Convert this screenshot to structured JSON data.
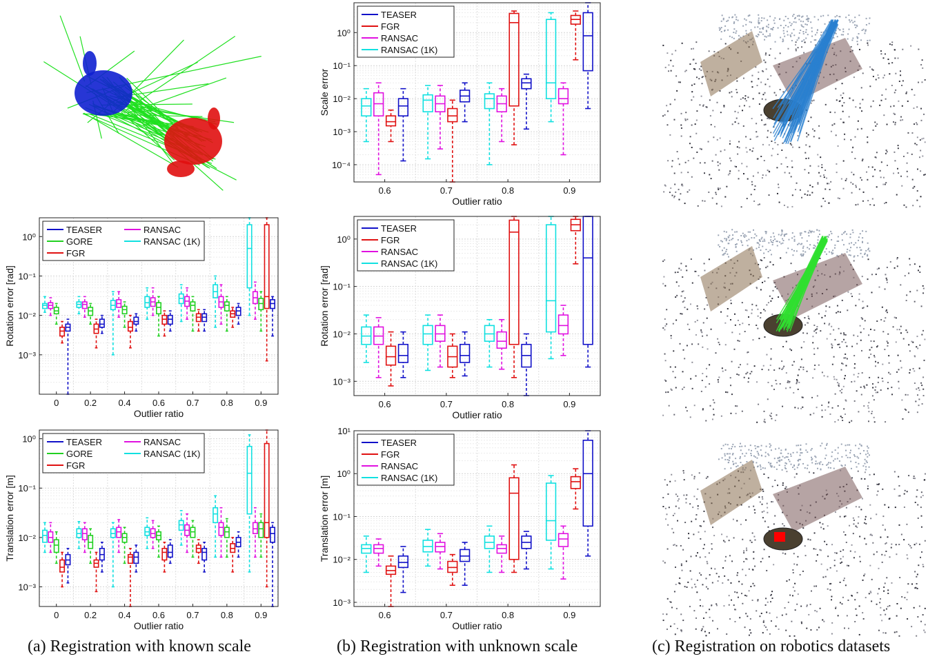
{
  "captions": {
    "a": "(a) Registration with known scale",
    "b": "(b) Registration with unknown scale",
    "c": "(c) Registration on robotics datasets"
  },
  "colors": {
    "TEASER": "#1010c8",
    "FGR": "#e01010",
    "RANSAC": "#e010e0",
    "RANSAC (1K)": "#10e0e0",
    "GORE": "#20d020",
    "bunny_source": "#1020d0",
    "bunny_target": "#e01010",
    "correspondence_a": "#20e020",
    "correspondence_c1": "#2a80d0",
    "correspondence_c2": "#30e030",
    "object_c3": "#ff0000"
  },
  "chart_data": [
    {
      "id": "rot_known",
      "type": "box",
      "ylabel": "Rotation error [rad]",
      "xlabel": "Outlier ratio",
      "categories": [
        "0",
        "0.2",
        "0.4",
        "0.6",
        "0.7",
        "0.8",
        "0.9"
      ],
      "yscale": "log",
      "ylim": [
        0.0001,
        3
      ],
      "yticks": [
        0.001,
        0.01,
        0.1,
        1
      ],
      "ytick_labels": [
        "10⁻³",
        "10⁻²",
        "10⁻¹",
        "10⁰"
      ],
      "legend": {
        "position": "top-left",
        "columns": 2,
        "entries": [
          "TEASER",
          "GORE",
          "FGR",
          "RANSAC",
          "RANSAC (1K)"
        ]
      },
      "series_order": [
        "RANSAC (1K)",
        "RANSAC",
        "GORE",
        "FGR",
        "TEASER"
      ],
      "boxes": {
        "RANSAC (1K)": [
          [
            0.012,
            0.015,
            0.018,
            0.02,
            0.03
          ],
          [
            0.011,
            0.016,
            0.019,
            0.022,
            0.03
          ],
          [
            0.001,
            0.014,
            0.018,
            0.024,
            0.04
          ],
          [
            0.008,
            0.016,
            0.021,
            0.03,
            0.05
          ],
          [
            0.007,
            0.02,
            0.027,
            0.035,
            0.06
          ],
          [
            0.005,
            0.028,
            0.04,
            0.06,
            0.1
          ],
          [
            0.01,
            0.05,
            0.5,
            2,
            3
          ]
        ],
        "RANSAC": [
          [
            0.01,
            0.015,
            0.018,
            0.021,
            0.028
          ],
          [
            0.009,
            0.015,
            0.019,
            0.022,
            0.03
          ],
          [
            0.009,
            0.016,
            0.02,
            0.025,
            0.04
          ],
          [
            0.01,
            0.017,
            0.022,
            0.028,
            0.05
          ],
          [
            0.008,
            0.017,
            0.023,
            0.03,
            0.05
          ],
          [
            0.006,
            0.016,
            0.022,
            0.03,
            0.06
          ],
          [
            0.008,
            0.02,
            0.028,
            0.04,
            0.07
          ]
        ],
        "GORE": [
          [
            0.006,
            0.011,
            0.013,
            0.016,
            0.02
          ],
          [
            0.006,
            0.01,
            0.013,
            0.016,
            0.02
          ],
          [
            0.005,
            0.011,
            0.014,
            0.017,
            0.022
          ],
          [
            0.003,
            0.011,
            0.016,
            0.021,
            0.03
          ],
          [
            0.004,
            0.013,
            0.018,
            0.022,
            0.03
          ],
          [
            0.004,
            0.013,
            0.018,
            0.022,
            0.03
          ],
          [
            0.004,
            0.014,
            0.02,
            0.027,
            0.04
          ]
        ],
        "FGR": [
          [
            0.002,
            0.003,
            0.004,
            0.005,
            0.007
          ],
          [
            0.0015,
            0.0035,
            0.0045,
            0.006,
            0.008
          ],
          [
            0.0015,
            0.004,
            0.005,
            0.007,
            0.01
          ],
          [
            0.003,
            0.006,
            0.008,
            0.01,
            0.013
          ],
          [
            0.004,
            0.007,
            0.009,
            0.011,
            0.014
          ],
          [
            0.005,
            0.009,
            0.011,
            0.013,
            0.016
          ],
          [
            0.0007,
            0.015,
            0.03,
            2,
            3
          ]
        ],
        "TEASER": [
          [
            0.0001,
            0.004,
            0.005,
            0.006,
            0.008
          ],
          [
            0.0035,
            0.005,
            0.006,
            0.008,
            0.01
          ],
          [
            0.004,
            0.006,
            0.007,
            0.009,
            0.011
          ],
          [
            0.004,
            0.006,
            0.008,
            0.01,
            0.013
          ],
          [
            0.004,
            0.007,
            0.009,
            0.011,
            0.014
          ],
          [
            0.006,
            0.01,
            0.013,
            0.016,
            0.02
          ],
          [
            0.003,
            0.015,
            0.02,
            0.025,
            0.03
          ]
        ]
      }
    },
    {
      "id": "trans_known",
      "type": "box",
      "ylabel": "Translation error [m]",
      "xlabel": "Outlier ratio",
      "categories": [
        "0",
        "0.2",
        "0.4",
        "0.6",
        "0.7",
        "0.8",
        "0.9"
      ],
      "yscale": "log",
      "ylim": [
        0.0004,
        1.5
      ],
      "yticks": [
        0.001,
        0.01,
        0.1,
        1
      ],
      "ytick_labels": [
        "10⁻³",
        "10⁻²",
        "10⁻¹",
        "10⁰"
      ],
      "legend": {
        "position": "top-left",
        "columns": 2,
        "entries": [
          "TEASER",
          "GORE",
          "FGR",
          "RANSAC",
          "RANSAC (1K)"
        ]
      },
      "series_order": [
        "RANSAC (1K)",
        "RANSAC",
        "GORE",
        "FGR",
        "TEASER"
      ],
      "boxes": {
        "RANSAC (1K)": [
          [
            0.005,
            0.008,
            0.011,
            0.014,
            0.02
          ],
          [
            0.006,
            0.01,
            0.012,
            0.015,
            0.021
          ],
          [
            0.001,
            0.01,
            0.012,
            0.015,
            0.02
          ],
          [
            0.006,
            0.011,
            0.013,
            0.016,
            0.025
          ],
          [
            0.007,
            0.014,
            0.018,
            0.022,
            0.035
          ],
          [
            0.004,
            0.02,
            0.03,
            0.04,
            0.07
          ],
          [
            0.002,
            0.03,
            0.2,
            0.7,
            1.2
          ]
        ],
        "RANSAC": [
          [
            0.005,
            0.008,
            0.01,
            0.013,
            0.02
          ],
          [
            0.005,
            0.009,
            0.012,
            0.015,
            0.02
          ],
          [
            0.005,
            0.01,
            0.013,
            0.016,
            0.023
          ],
          [
            0.006,
            0.01,
            0.012,
            0.015,
            0.022
          ],
          [
            0.005,
            0.011,
            0.014,
            0.018,
            0.03
          ],
          [
            0.004,
            0.011,
            0.016,
            0.02,
            0.04
          ],
          [
            0.004,
            0.012,
            0.015,
            0.02,
            0.04
          ]
        ],
        "GORE": [
          [
            0.003,
            0.005,
            0.007,
            0.009,
            0.013
          ],
          [
            0.003,
            0.006,
            0.008,
            0.011,
            0.015
          ],
          [
            0.003,
            0.008,
            0.01,
            0.012,
            0.016
          ],
          [
            0.004,
            0.009,
            0.011,
            0.013,
            0.017
          ],
          [
            0.004,
            0.01,
            0.013,
            0.016,
            0.022
          ],
          [
            0.004,
            0.01,
            0.013,
            0.016,
            0.024
          ],
          [
            0.004,
            0.01,
            0.015,
            0.02,
            0.03
          ]
        ],
        "FGR": [
          [
            0.001,
            0.002,
            0.0025,
            0.0035,
            0.005
          ],
          [
            0.0008,
            0.0025,
            0.003,
            0.0035,
            0.005
          ],
          [
            0.0004,
            0.003,
            0.004,
            0.0045,
            0.006
          ],
          [
            0.002,
            0.0035,
            0.005,
            0.006,
            0.008
          ],
          [
            0.003,
            0.005,
            0.006,
            0.007,
            0.009
          ],
          [
            0.002,
            0.005,
            0.006,
            0.0075,
            0.01
          ],
          [
            0.001,
            0.01,
            0.02,
            0.8,
            1.5
          ]
        ],
        "TEASER": [
          [
            0.0012,
            0.0028,
            0.0035,
            0.0045,
            0.006
          ],
          [
            0.002,
            0.0035,
            0.0045,
            0.006,
            0.008
          ],
          [
            0.002,
            0.003,
            0.004,
            0.005,
            0.007
          ],
          [
            0.003,
            0.004,
            0.005,
            0.007,
            0.009
          ],
          [
            0.002,
            0.0035,
            0.005,
            0.006,
            0.008
          ],
          [
            0.004,
            0.0065,
            0.008,
            0.01,
            0.013
          ],
          [
            0.0004,
            0.008,
            0.012,
            0.016,
            0.02
          ]
        ]
      }
    },
    {
      "id": "scale_unknown",
      "type": "box",
      "ylabel": "Scale error",
      "xlabel": "Outlier ratio",
      "categories": [
        "0.6",
        "0.7",
        "0.8",
        "0.9"
      ],
      "yscale": "log",
      "ylim": [
        3e-05,
        8
      ],
      "yticks": [
        0.0001,
        0.001,
        0.01,
        0.1,
        1
      ],
      "ytick_labels": [
        "10⁻⁴",
        "10⁻³",
        "10⁻²",
        "10⁻¹",
        "10⁰"
      ],
      "legend": {
        "position": "top-left",
        "columns": 1,
        "entries": [
          "TEASER",
          "FGR",
          "RANSAC",
          "RANSAC (1K)"
        ]
      },
      "series_order": [
        "RANSAC (1K)",
        "RANSAC",
        "FGR",
        "TEASER"
      ],
      "boxes": {
        "RANSAC (1K)": [
          [
            0.0005,
            0.003,
            0.006,
            0.01,
            0.02
          ],
          [
            0.00015,
            0.004,
            0.009,
            0.013,
            0.025
          ],
          [
            0.0001,
            0.005,
            0.01,
            0.014,
            0.03
          ],
          [
            0.002,
            0.01,
            0.03,
            2.5,
            4
          ]
        ],
        "RANSAC": [
          [
            5e-05,
            0.003,
            0.007,
            0.015,
            0.03
          ],
          [
            0.0003,
            0.004,
            0.007,
            0.012,
            0.025
          ],
          [
            0.0005,
            0.004,
            0.007,
            0.012,
            0.02
          ],
          [
            0.0002,
            0.007,
            0.01,
            0.02,
            0.03
          ]
        ],
        "FGR": [
          [
            0.0005,
            0.0015,
            0.002,
            0.003,
            0.0045
          ],
          [
            3e-05,
            0.002,
            0.003,
            0.005,
            0.009
          ],
          [
            0.0004,
            0.006,
            2,
            3.8,
            4.5
          ],
          [
            0.15,
            1.8,
            2.5,
            3.3,
            4.5
          ]
        ],
        "TEASER": [
          [
            0.00013,
            0.003,
            0.006,
            0.01,
            0.02
          ],
          [
            0.002,
            0.008,
            0.012,
            0.018,
            0.03
          ],
          [
            0.0012,
            0.02,
            0.03,
            0.04,
            0.055
          ],
          [
            0.005,
            0.07,
            0.8,
            4,
            8
          ]
        ]
      }
    },
    {
      "id": "rot_unknown",
      "type": "box",
      "ylabel": "Rotation error [rad]",
      "xlabel": "Outlier ratio",
      "categories": [
        "0.6",
        "0.7",
        "0.8",
        "0.9"
      ],
      "yscale": "log",
      "ylim": [
        0.0005,
        3
      ],
      "yticks": [
        0.001,
        0.01,
        0.1,
        1
      ],
      "ytick_labels": [
        "10⁻³",
        "10⁻²",
        "10⁻¹",
        "10⁰"
      ],
      "legend": {
        "position": "top-left",
        "columns": 1,
        "entries": [
          "TEASER",
          "FGR",
          "RANSAC",
          "RANSAC (1K)"
        ]
      },
      "series_order": [
        "RANSAC (1K)",
        "RANSAC",
        "FGR",
        "TEASER"
      ],
      "boxes": {
        "RANSAC (1K)": [
          [
            0.0025,
            0.006,
            0.009,
            0.014,
            0.025
          ],
          [
            0.0017,
            0.006,
            0.01,
            0.015,
            0.025
          ],
          [
            0.002,
            0.007,
            0.01,
            0.015,
            0.02
          ],
          [
            0.003,
            0.011,
            0.05,
            2,
            3
          ]
        ],
        "RANSAC": [
          [
            0.0012,
            0.006,
            0.009,
            0.014,
            0.022
          ],
          [
            0.002,
            0.007,
            0.01,
            0.015,
            0.025
          ],
          [
            0.0018,
            0.005,
            0.007,
            0.011,
            0.02
          ],
          [
            0.0035,
            0.01,
            0.015,
            0.025,
            0.04
          ]
        ],
        "FGR": [
          [
            0.0008,
            0.0022,
            0.0033,
            0.0055,
            0.011
          ],
          [
            0.0012,
            0.002,
            0.0033,
            0.0055,
            0.01
          ],
          [
            0.0012,
            0.006,
            1.4,
            2.5,
            3
          ],
          [
            0.3,
            1.5,
            2,
            2.6,
            3
          ]
        ],
        "TEASER": [
          [
            0.0012,
            0.0025,
            0.0035,
            0.006,
            0.011
          ],
          [
            0.0013,
            0.0025,
            0.0035,
            0.006,
            0.011
          ],
          [
            0.0005,
            0.002,
            0.0035,
            0.006,
            0.01
          ],
          [
            0.002,
            0.006,
            0.4,
            3,
            3
          ]
        ]
      }
    },
    {
      "id": "trans_unknown",
      "type": "box",
      "ylabel": "Translation error [m]",
      "xlabel": "Outlier ratio",
      "categories": [
        "0.6",
        "0.7",
        "0.8",
        "0.9"
      ],
      "yscale": "log",
      "ylim": [
        0.0008,
        10
      ],
      "yticks": [
        0.001,
        0.01,
        0.1,
        1,
        10
      ],
      "ytick_labels": [
        "10⁻³",
        "10⁻²",
        "10⁻¹",
        "10⁰",
        "10¹"
      ],
      "legend": {
        "position": "top-left",
        "columns": 1,
        "entries": [
          "TEASER",
          "FGR",
          "RANSAC",
          "RANSAC (1K)"
        ]
      },
      "series_order": [
        "RANSAC (1K)",
        "RANSAC",
        "FGR",
        "TEASER"
      ],
      "boxes": {
        "RANSAC (1K)": [
          [
            0.005,
            0.014,
            0.018,
            0.022,
            0.035
          ],
          [
            0.007,
            0.015,
            0.02,
            0.028,
            0.05
          ],
          [
            0.005,
            0.018,
            0.025,
            0.035,
            0.06
          ],
          [
            0.006,
            0.028,
            0.08,
            0.6,
            0.9
          ]
        ],
        "RANSAC": [
          [
            0.007,
            0.014,
            0.018,
            0.022,
            0.03
          ],
          [
            0.006,
            0.015,
            0.02,
            0.025,
            0.04
          ],
          [
            0.005,
            0.014,
            0.018,
            0.022,
            0.035
          ],
          [
            0.0035,
            0.02,
            0.03,
            0.04,
            0.06
          ]
        ],
        "FGR": [
          [
            0.0008,
            0.0045,
            0.0055,
            0.007,
            0.012
          ],
          [
            0.0025,
            0.005,
            0.0065,
            0.009,
            0.013
          ],
          [
            0.005,
            0.01,
            0.35,
            0.8,
            1.6
          ],
          [
            0.15,
            0.45,
            0.65,
            0.85,
            1.3
          ]
        ],
        "TEASER": [
          [
            0.0017,
            0.0065,
            0.0085,
            0.012,
            0.02
          ],
          [
            0.0025,
            0.009,
            0.012,
            0.017,
            0.025
          ],
          [
            0.006,
            0.018,
            0.025,
            0.035,
            0.045
          ],
          [
            0.012,
            0.06,
            1,
            6,
            10
          ]
        ]
      }
    }
  ]
}
